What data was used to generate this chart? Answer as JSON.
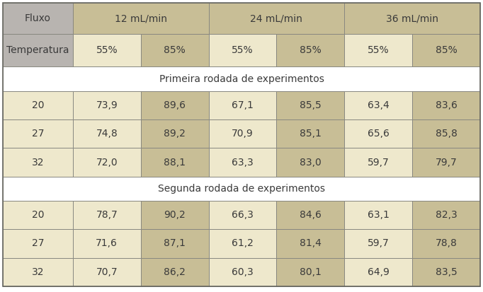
{
  "section1_label": "Primeira rodada de experimentos",
  "section2_label": "Segunda rodada de experimentos",
  "rows_section1": [
    [
      "20",
      "73,9",
      "89,6",
      "67,1",
      "85,5",
      "63,4",
      "83,6"
    ],
    [
      "27",
      "74,8",
      "89,2",
      "70,9",
      "85,1",
      "65,6",
      "85,8"
    ],
    [
      "32",
      "72,0",
      "88,1",
      "63,3",
      "83,0",
      "59,7",
      "79,7"
    ]
  ],
  "rows_section2": [
    [
      "20",
      "78,7",
      "90,2",
      "66,3",
      "84,6",
      "63,1",
      "82,3"
    ],
    [
      "27",
      "71,6",
      "87,1",
      "61,2",
      "81,4",
      "59,7",
      "78,8"
    ],
    [
      "32",
      "70,7",
      "86,2",
      "60,3",
      "80,1",
      "64,9",
      "83,5"
    ]
  ],
  "color_header_tan": "#c8be96",
  "color_header_gray": "#b8b4b0",
  "color_cell_light": "#eee8cc",
  "color_cell_tan": "#c8be96",
  "color_white": "#ffffff",
  "color_border": "#888880",
  "text_color": "#3a3a3a",
  "fig_width": 6.82,
  "fig_height": 4.13,
  "dpi": 100
}
